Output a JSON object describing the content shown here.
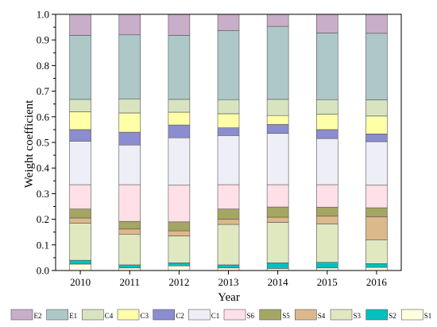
{
  "chart_data": {
    "type": "bar",
    "stacked": true,
    "title": "",
    "xlabel": "Year",
    "ylabel": "Weight coefficient",
    "ylim": [
      0,
      1.0
    ],
    "yticks": [
      "0.0",
      "0.1",
      "0.2",
      "0.3",
      "0.4",
      "0.5",
      "0.6",
      "0.7",
      "0.8",
      "0.9",
      "1.0"
    ],
    "grid": false,
    "legend_position": "bottom",
    "categories": [
      "2010",
      "2011",
      "2012",
      "2013",
      "2014",
      "2015",
      "2016"
    ],
    "series": [
      {
        "name": "S1",
        "color": "#FFFFE0",
        "values": [
          0.025,
          0.01,
          0.018,
          0.01,
          0.008,
          0.01,
          0.012
        ]
      },
      {
        "name": "S2",
        "color": "#00C0C0",
        "values": [
          0.015,
          0.012,
          0.012,
          0.012,
          0.022,
          0.022,
          0.015
        ]
      },
      {
        "name": "S3",
        "color": "#E0E8C0",
        "values": [
          0.145,
          0.12,
          0.105,
          0.158,
          0.158,
          0.15,
          0.093
        ]
      },
      {
        "name": "S4",
        "color": "#DDB88A",
        "values": [
          0.02,
          0.02,
          0.02,
          0.02,
          0.02,
          0.03,
          0.09
        ]
      },
      {
        "name": "S5",
        "color": "#A6A663",
        "values": [
          0.035,
          0.03,
          0.035,
          0.04,
          0.04,
          0.035,
          0.035
        ]
      },
      {
        "name": "S6",
        "color": "#FFE0E8",
        "values": [
          0.095,
          0.143,
          0.143,
          0.095,
          0.087,
          0.088,
          0.088
        ]
      },
      {
        "name": "C1",
        "color": "#EEEEF6",
        "values": [
          0.17,
          0.155,
          0.185,
          0.192,
          0.2,
          0.18,
          0.17
        ]
      },
      {
        "name": "C2",
        "color": "#8C8CD0",
        "values": [
          0.045,
          0.05,
          0.05,
          0.03,
          0.035,
          0.035,
          0.03
        ]
      },
      {
        "name": "C3",
        "color": "#FFFFA8",
        "values": [
          0.07,
          0.075,
          0.05,
          0.055,
          0.035,
          0.06,
          0.07
        ]
      },
      {
        "name": "C4",
        "color": "#D8E4C0",
        "values": [
          0.048,
          0.055,
          0.05,
          0.055,
          0.063,
          0.057,
          0.063
        ]
      },
      {
        "name": "E1",
        "color": "#AEC8C8",
        "values": [
          0.25,
          0.25,
          0.25,
          0.27,
          0.285,
          0.26,
          0.26
        ]
      },
      {
        "name": "E2",
        "color": "#C8AEC8",
        "values": [
          0.082,
          0.08,
          0.082,
          0.063,
          0.047,
          0.073,
          0.074
        ]
      }
    ],
    "legend_order": [
      "E2",
      "E1",
      "C4",
      "C3",
      "C2",
      "C1",
      "S6",
      "S5",
      "S4",
      "S3",
      "S2",
      "S1"
    ]
  }
}
